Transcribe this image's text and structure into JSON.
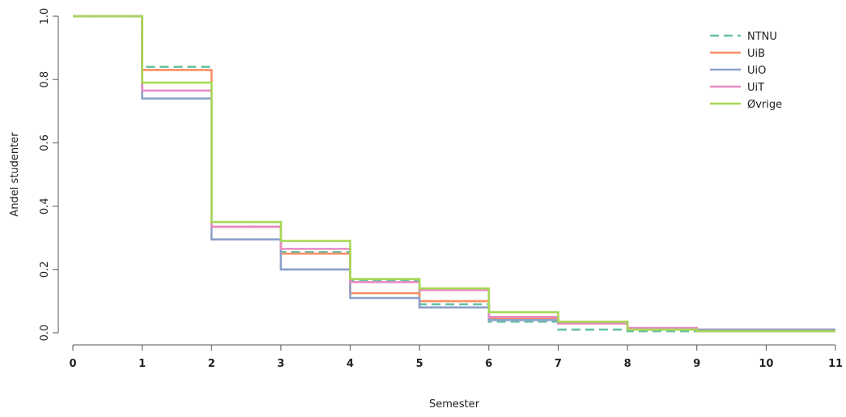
{
  "chart_data": {
    "type": "line",
    "step": true,
    "xlabel": "Semester",
    "ylabel": "Andel studenter",
    "xlim": [
      0,
      11
    ],
    "ylim": [
      0,
      1.0
    ],
    "x_ticks": [
      "0",
      "1",
      "2",
      "3",
      "4",
      "5",
      "6",
      "7",
      "8",
      "9",
      "10",
      "11"
    ],
    "y_ticks": [
      "0.0",
      "0.2",
      "0.4",
      "0.6",
      "0.8",
      "1.0"
    ],
    "grid": false,
    "legend_position": "top-right",
    "x": [
      0,
      1,
      2,
      3,
      4,
      5,
      6,
      7,
      8,
      9,
      10
    ],
    "series": [
      {
        "name": "NTNU",
        "color": "#66c2a5",
        "dash": "dashed",
        "values": [
          1.0,
          0.84,
          0.335,
          0.255,
          0.165,
          0.09,
          0.035,
          0.01,
          0.005,
          0.005,
          0.005
        ]
      },
      {
        "name": "UiB",
        "color": "#fc8d62",
        "dash": "solid",
        "values": [
          1.0,
          0.83,
          0.335,
          0.25,
          0.125,
          0.1,
          0.045,
          0.03,
          0.015,
          0.01,
          0.01
        ]
      },
      {
        "name": "UiO",
        "color": "#8da0cb",
        "dash": "solid",
        "values": [
          1.0,
          0.74,
          0.295,
          0.2,
          0.11,
          0.08,
          0.04,
          0.03,
          0.01,
          0.01,
          0.01
        ]
      },
      {
        "name": "UiT",
        "color": "#e78ac3",
        "dash": "solid",
        "values": [
          1.0,
          0.765,
          0.335,
          0.265,
          0.16,
          0.135,
          0.05,
          0.03,
          0.015,
          0.005,
          0.005
        ]
      },
      {
        "name": "Øvrige",
        "color": "#a6d854",
        "dash": "solid",
        "values": [
          1.0,
          0.79,
          0.35,
          0.29,
          0.17,
          0.14,
          0.065,
          0.035,
          0.01,
          0.005,
          0.005
        ]
      }
    ]
  }
}
